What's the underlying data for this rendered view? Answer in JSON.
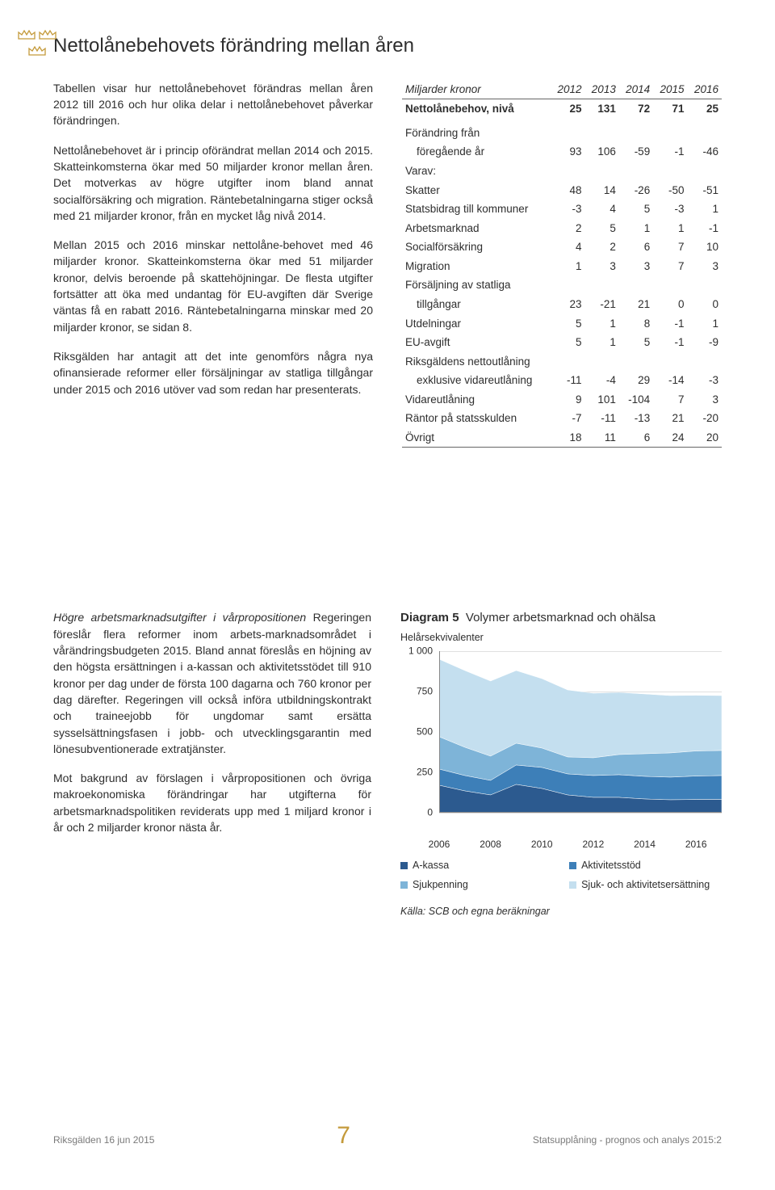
{
  "title": "Nettolånebehovets förändring mellan åren",
  "paragraphs": {
    "p1": "Tabellen visar hur nettolånebehovet förändras mellan åren 2012 till 2016 och hur olika delar i nettolånebehovet påverkar förändringen.",
    "p2": "Nettolånebehovet är i princip oförändrat mellan 2014 och 2015. Skatteinkomsterna ökar med 50 miljarder kronor mellan åren. Det motverkas av högre utgifter inom bland annat socialförsäkring och migration. Räntebetalningarna stiger också med 21 miljarder kronor, från en mycket låg nivå 2014.",
    "p3": "Mellan 2015 och 2016 minskar nettolåne-behovet med 46 miljarder kronor. Skatteinkomsterna ökar med 51 miljarder kronor, delvis beroende på skattehöjningar. De flesta utgifter fortsätter att öka med undantag för EU-avgiften där Sverige väntas få en rabatt 2016. Räntebetalningarna minskar med 20 miljarder kronor, se sidan 8.",
    "p4": "Riksgälden har antagit att det inte genomförs några nya ofinansierade reformer eller försäljningar av statliga tillgångar under 2015 och 2016 utöver vad som redan har presenterats."
  },
  "table": {
    "unit": "Miljarder kronor",
    "years": [
      "2012",
      "2013",
      "2014",
      "2015",
      "2016"
    ],
    "rows": [
      {
        "label": "Nettolånebehov, nivå",
        "vals": [
          "25",
          "131",
          "72",
          "71",
          "25"
        ],
        "bold": true
      },
      {
        "spacer": true
      },
      {
        "label": "Förändring från",
        "vals": [
          "",
          "",
          "",
          "",
          ""
        ]
      },
      {
        "label": "föregående år",
        "vals": [
          "93",
          "106",
          "-59",
          "-1",
          "-46"
        ],
        "indent": true
      },
      {
        "label": "Varav:",
        "vals": [
          "",
          "",
          "",
          "",
          ""
        ]
      },
      {
        "label": "Skatter",
        "vals": [
          "48",
          "14",
          "-26",
          "-50",
          "-51"
        ]
      },
      {
        "label": "Statsbidrag till kommuner",
        "vals": [
          "-3",
          "4",
          "5",
          "-3",
          "1"
        ]
      },
      {
        "label": "Arbetsmarknad",
        "vals": [
          "2",
          "5",
          "1",
          "1",
          "-1"
        ]
      },
      {
        "label": "Socialförsäkring",
        "vals": [
          "4",
          "2",
          "6",
          "7",
          "10"
        ]
      },
      {
        "label": "Migration",
        "vals": [
          "1",
          "3",
          "3",
          "7",
          "3"
        ]
      },
      {
        "label": "Försäljning av statliga",
        "vals": [
          "",
          "",
          "",
          "",
          ""
        ]
      },
      {
        "label": "tillgångar",
        "vals": [
          "23",
          "-21",
          "21",
          "0",
          "0"
        ],
        "indent": true
      },
      {
        "label": "Utdelningar",
        "vals": [
          "5",
          "1",
          "8",
          "-1",
          "1"
        ]
      },
      {
        "label": "EU-avgift",
        "vals": [
          "5",
          "1",
          "5",
          "-1",
          "-9"
        ]
      },
      {
        "label": "Riksgäldens nettoutlåning",
        "vals": [
          "",
          "",
          "",
          "",
          ""
        ]
      },
      {
        "label": "exklusive vidareutlåning",
        "vals": [
          "-11",
          "-4",
          "29",
          "-14",
          "-3"
        ],
        "indent": true
      },
      {
        "label": "Vidareutlåning",
        "vals": [
          "9",
          "101",
          "-104",
          "7",
          "3"
        ]
      },
      {
        "label": "Räntor på statsskulden",
        "vals": [
          "-7",
          "-11",
          "-13",
          "21",
          "-20"
        ]
      },
      {
        "label": "Övrigt",
        "vals": [
          "18",
          "11",
          "6",
          "24",
          "20"
        ]
      }
    ]
  },
  "sec2": {
    "heading": "Högre arbetsmarknadsutgifter i vårpropositionen",
    "p1": "Regeringen föreslår flera reformer inom arbets-marknadsområdet i vårändringsbudgeten 2015. Bland annat föreslås en höjning av den högsta ersättningen i a-kassan och aktivitetsstödet till 910 kronor per dag under de första 100 dagarna och 760 kronor per dag därefter. Regeringen vill också införa utbildningskontrakt och traineejobb för ungdomar samt ersätta sysselsättningsfasen i jobb- och utvecklingsgarantin med lönesubventionerade extratjänster.",
    "p2": "Mot bakgrund av förslagen i vårpropositionen och övriga makroekonomiska förändringar har utgifterna för arbetsmarknadspolitiken reviderats upp med 1 miljard kronor i år och 2 miljarder kronor nästa år."
  },
  "chart": {
    "number": "Diagram 5",
    "title": "Volymer arbetsmarknad och ohälsa",
    "sub": "Helårsekvivalenter",
    "ylim": [
      0,
      1000
    ],
    "ytick_step": 250,
    "xmin": 2006,
    "xmax": 2017,
    "xticks": [
      2006,
      2008,
      2010,
      2012,
      2014,
      2016
    ],
    "colors": {
      "s1": "#2C5A8F",
      "s2": "#3D7FB8",
      "s3": "#7EB4D8",
      "s4": "#C4DFEF",
      "grid": "#E0E0E0",
      "bg": "#ffffff"
    },
    "legend": [
      {
        "label": "A-kassa",
        "color": "#2C5A8F"
      },
      {
        "label": "Aktivitetsstöd",
        "color": "#3D7FB8"
      },
      {
        "label": "Sjukpenning",
        "color": "#7EB4D8"
      },
      {
        "label": "Sjuk- och aktivitetsersättning",
        "color": "#C4DFEF"
      }
    ],
    "src": "Källa: SCB och egna beräkningar",
    "series": {
      "years": [
        2006,
        2007,
        2008,
        2009,
        2010,
        2011,
        2012,
        2013,
        2014,
        2015,
        2016,
        2017
      ],
      "s1": [
        170,
        135,
        110,
        175,
        150,
        110,
        95,
        95,
        85,
        80,
        82,
        82
      ],
      "s2": [
        100,
        95,
        90,
        120,
        130,
        130,
        135,
        140,
        140,
        140,
        145,
        148
      ],
      "s3": [
        200,
        175,
        150,
        135,
        120,
        105,
        110,
        125,
        140,
        150,
        155,
        155
      ],
      "s4": [
        480,
        475,
        465,
        450,
        430,
        415,
        400,
        385,
        370,
        355,
        345,
        340
      ]
    }
  },
  "footer": {
    "left": "Riksgälden 16 jun 2015",
    "page": "7",
    "right": "Statsupplåning - prognos och analys 2015:2"
  }
}
